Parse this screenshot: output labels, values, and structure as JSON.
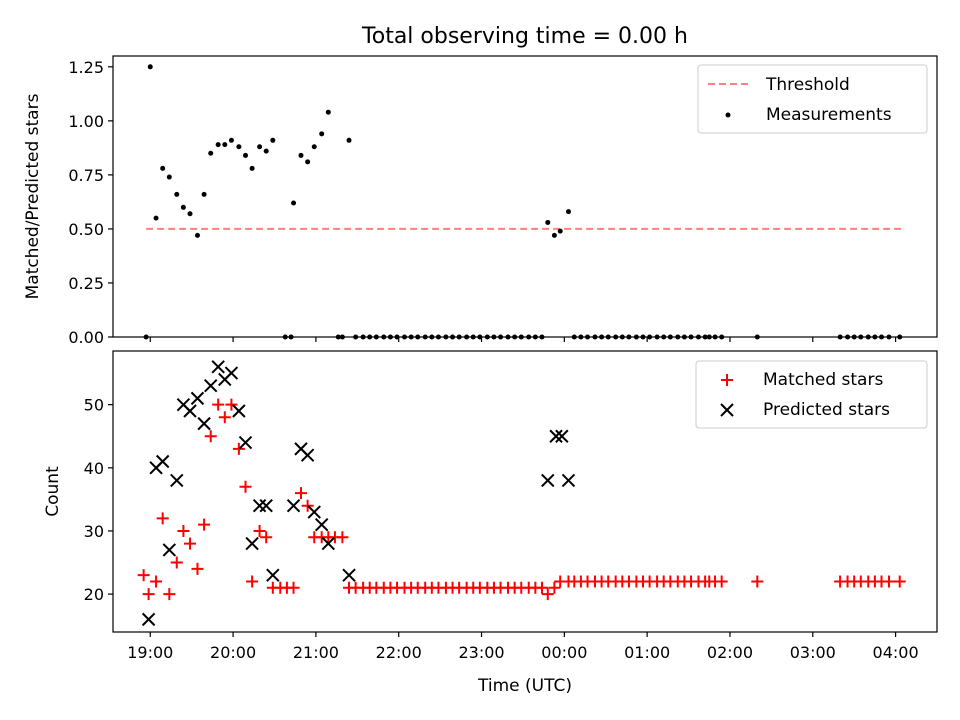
{
  "title": "Total observing time = 0.00 h",
  "chart_data": [
    {
      "type": "scatter",
      "ylabel": "Matched/Predicted stars",
      "ylim": [
        0,
        1.3
      ],
      "yticks": [
        "0.00",
        "0.25",
        "0.50",
        "0.75",
        "1.00",
        "1.25"
      ],
      "ytick_values": [
        0,
        0.25,
        0.5,
        0.75,
        1.0,
        1.25
      ],
      "legend_position": "top-right",
      "threshold": {
        "name": "Threshold",
        "value": 0.5,
        "color": "#ff8080",
        "x_range": [
          18.95,
          28.07
        ]
      },
      "series": [
        {
          "name": "Measurements",
          "color": "#000000",
          "x": [
            18.95,
            19.0,
            19.07,
            19.15,
            19.23,
            19.32,
            19.4,
            19.48,
            19.57,
            19.65,
            19.73,
            19.82,
            19.9,
            19.98,
            20.07,
            20.15,
            20.23,
            20.32,
            20.4,
            20.48,
            20.63,
            20.7,
            20.73,
            20.82,
            20.9,
            20.98,
            21.07,
            21.15,
            21.27,
            21.32,
            21.4,
            21.48,
            21.57,
            21.65,
            21.73,
            21.82,
            21.9,
            21.98,
            22.07,
            22.15,
            22.23,
            22.32,
            22.4,
            22.48,
            22.57,
            22.65,
            22.73,
            22.82,
            22.9,
            22.98,
            23.07,
            23.15,
            23.23,
            23.32,
            23.4,
            23.48,
            23.57,
            23.65,
            23.73,
            23.8,
            23.88,
            23.95,
            24.05,
            24.12,
            24.2,
            24.28,
            24.37,
            24.45,
            24.53,
            24.62,
            24.7,
            24.78,
            24.87,
            24.95,
            25.03,
            25.12,
            25.2,
            25.28,
            25.37,
            25.45,
            25.53,
            25.62,
            25.7,
            25.75,
            25.82,
            25.9,
            26.33,
            27.33,
            27.42,
            27.5,
            27.58,
            27.67,
            27.75,
            27.83,
            27.92,
            28.05
          ],
          "y": [
            0.0,
            1.25,
            0.55,
            0.78,
            0.74,
            0.66,
            0.6,
            0.57,
            0.47,
            0.66,
            0.85,
            0.89,
            0.89,
            0.91,
            0.88,
            0.84,
            0.78,
            0.88,
            0.86,
            0.91,
            0.0,
            0.0,
            0.62,
            0.84,
            0.81,
            0.88,
            0.94,
            1.04,
            0.0,
            0.0,
            0.91,
            0.0,
            0.0,
            0.0,
            0.0,
            0.0,
            0.0,
            0.0,
            0.0,
            0.0,
            0.0,
            0.0,
            0.0,
            0.0,
            0.0,
            0.0,
            0.0,
            0.0,
            0.0,
            0.0,
            0.0,
            0.0,
            0.0,
            0.0,
            0.0,
            0.0,
            0.0,
            0.0,
            0.0,
            0.53,
            0.47,
            0.49,
            0.58,
            0.0,
            0.0,
            0.0,
            0.0,
            0.0,
            0.0,
            0.0,
            0.0,
            0.0,
            0.0,
            0.0,
            0.0,
            0.0,
            0.0,
            0.0,
            0.0,
            0.0,
            0.0,
            0.0,
            0.0,
            0.0,
            0.0,
            0.0,
            0.0,
            0.0,
            0.0,
            0.0,
            0.0,
            0.0,
            0.0,
            0.0,
            0.0,
            0.0
          ]
        }
      ]
    },
    {
      "type": "scatter",
      "xlabel": "Time (UTC)",
      "ylabel": "Count",
      "ylim": [
        14,
        58.5
      ],
      "yticks": [
        "20",
        "30",
        "40",
        "50"
      ],
      "ytick_values": [
        20,
        30,
        40,
        50
      ],
      "xlim": [
        18.55,
        28.5
      ],
      "xticks": [
        "19:00",
        "20:00",
        "21:00",
        "22:00",
        "23:00",
        "00:00",
        "01:00",
        "02:00",
        "03:00",
        "04:00"
      ],
      "xtick_values": [
        19,
        20,
        21,
        22,
        23,
        24,
        25,
        26,
        27,
        28
      ],
      "legend_position": "top-right",
      "series": [
        {
          "name": "Matched stars",
          "color": "#ff0000",
          "marker": "plus",
          "x": [
            18.92,
            18.98,
            19.07,
            19.15,
            19.23,
            19.32,
            19.4,
            19.48,
            19.57,
            19.65,
            19.73,
            19.82,
            19.9,
            19.98,
            20.07,
            20.15,
            20.23,
            20.32,
            20.4,
            20.48,
            20.57,
            20.65,
            20.73,
            20.82,
            20.9,
            20.98,
            21.07,
            21.15,
            21.23,
            21.32,
            21.4,
            21.48,
            21.57,
            21.65,
            21.73,
            21.82,
            21.9,
            21.98,
            22.07,
            22.15,
            22.23,
            22.32,
            22.4,
            22.48,
            22.57,
            22.65,
            22.73,
            22.82,
            22.9,
            22.98,
            23.07,
            23.15,
            23.23,
            23.32,
            23.4,
            23.48,
            23.57,
            23.65,
            23.73,
            23.8,
            23.88,
            23.95,
            24.05,
            24.12,
            24.2,
            24.28,
            24.37,
            24.45,
            24.53,
            24.62,
            24.7,
            24.78,
            24.87,
            24.95,
            25.03,
            25.12,
            25.2,
            25.28,
            25.37,
            25.45,
            25.53,
            25.62,
            25.7,
            25.75,
            25.82,
            25.9,
            26.33,
            27.33,
            27.42,
            27.5,
            27.58,
            27.67,
            27.75,
            27.83,
            27.92,
            28.05
          ],
          "y": [
            23,
            20,
            22,
            32,
            20,
            25,
            30,
            28,
            24,
            31,
            45,
            50,
            48,
            50,
            43,
            37,
            22,
            30,
            29,
            21,
            21,
            21,
            21,
            36,
            34,
            29,
            29,
            29,
            29,
            29,
            21,
            21,
            21,
            21,
            21,
            21,
            21,
            21,
            21,
            21,
            21,
            21,
            21,
            21,
            21,
            21,
            21,
            21,
            21,
            21,
            21,
            21,
            21,
            21,
            21,
            21,
            21,
            21,
            21,
            20,
            21,
            22,
            22,
            22,
            22,
            22,
            22,
            22,
            22,
            22,
            22,
            22,
            22,
            22,
            22,
            22,
            22,
            22,
            22,
            22,
            22,
            22,
            22,
            22,
            22,
            22,
            22,
            22,
            22,
            22,
            22,
            22,
            22,
            22,
            22,
            22
          ]
        },
        {
          "name": "Predicted stars",
          "color": "#000000",
          "marker": "x",
          "x": [
            18.98,
            19.07,
            19.15,
            19.23,
            19.32,
            19.4,
            19.48,
            19.57,
            19.65,
            19.73,
            19.82,
            19.9,
            19.98,
            20.07,
            20.15,
            20.23,
            20.32,
            20.4,
            20.48,
            20.73,
            20.82,
            20.9,
            20.98,
            21.07,
            21.15,
            21.4,
            23.8,
            23.9,
            23.97,
            24.05
          ],
          "y": [
            16,
            40,
            41,
            27,
            38,
            50,
            49,
            51,
            47,
            53,
            56,
            54,
            55,
            49,
            44,
            28,
            34,
            34,
            23,
            34,
            43,
            42,
            33,
            31,
            28,
            23,
            38,
            45,
            45,
            38
          ]
        }
      ]
    }
  ]
}
